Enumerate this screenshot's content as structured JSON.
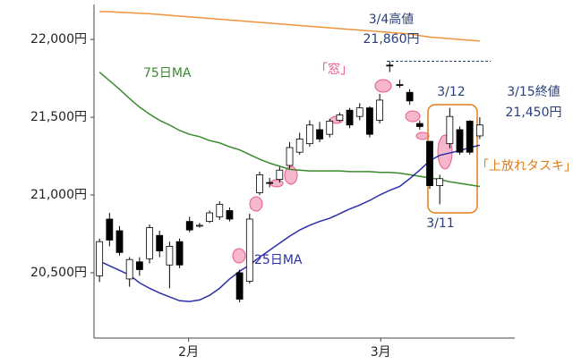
{
  "chart_data": {
    "type": "candlestick",
    "categories": [
      null,
      null,
      null,
      null,
      null,
      null,
      null,
      null,
      null,
      null,
      null,
      null,
      null,
      null,
      null,
      null,
      null,
      null,
      null,
      null,
      null,
      null,
      null,
      null,
      null,
      null,
      null,
      null,
      null,
      null,
      null,
      null,
      null,
      null,
      null,
      null,
      null,
      null,
      null
    ],
    "open": [
      20480,
      20845,
      20770,
      20460,
      20570,
      20590,
      20740,
      20550,
      20700,
      20830,
      20800,
      20830,
      20860,
      20900,
      20500,
      20445,
      21015,
      21080,
      21100,
      21190,
      21275,
      21330,
      21420,
      21390,
      21480,
      21545,
      21505,
      21560,
      21480,
      21835,
      21710,
      21660,
      21460,
      21345,
      21060,
      21330,
      21420,
      21475,
      21380
    ],
    "high": [
      20720,
      20885,
      20800,
      20600,
      20600,
      20810,
      20770,
      20700,
      20720,
      20860,
      20820,
      20900,
      20960,
      20920,
      20520,
      20880,
      21150,
      21110,
      21180,
      21340,
      21400,
      21480,
      21470,
      21490,
      21530,
      21560,
      21590,
      21570,
      21650,
      21860,
      21740,
      21680,
      21480,
      21345,
      21130,
      21560,
      21440,
      21480,
      21500
    ],
    "low": [
      20440,
      20670,
      20610,
      20410,
      20480,
      20560,
      20600,
      20400,
      20530,
      20760,
      20790,
      20820,
      20840,
      20830,
      20310,
      20430,
      21000,
      21050,
      21080,
      21170,
      21260,
      21310,
      21340,
      21370,
      21470,
      21430,
      21480,
      21370,
      21460,
      21790,
      21690,
      21580,
      21420,
      21040,
      20940,
      21300,
      21260,
      21260,
      21360
    ],
    "close": [
      20700,
      20710,
      20630,
      20585,
      20520,
      20790,
      20640,
      20670,
      20550,
      20775,
      20805,
      20885,
      20940,
      20845,
      20330,
      20845,
      21130,
      21075,
      21160,
      21305,
      21360,
      21450,
      21360,
      21475,
      21515,
      21450,
      21560,
      21390,
      21610,
      21830,
      21705,
      21605,
      21440,
      21060,
      21105,
      21505,
      21275,
      21275,
      21450
    ],
    "up_color": "#ffffff",
    "down_color": "#000000",
    "series": [
      {
        "name": "75日MA",
        "color": "#3a8a2e",
        "values": [
          21790,
          21735,
          21680,
          21620,
          21565,
          21520,
          21480,
          21450,
          21415,
          21390,
          21375,
          21350,
          21335,
          21310,
          21290,
          21260,
          21230,
          21205,
          21185,
          21165,
          21160,
          21155,
          21155,
          21155,
          21155,
          21150,
          21150,
          21150,
          21145,
          21145,
          21140,
          21130,
          21120,
          21110,
          21100,
          21085,
          21075,
          21065,
          21055
        ]
      },
      {
        "name": "25日MA",
        "color": "#2a2fa8",
        "values": [
          20575,
          20545,
          20515,
          20485,
          20435,
          20400,
          20370,
          20345,
          20320,
          20315,
          20325,
          20355,
          20400,
          20460,
          20510,
          20550,
          20600,
          20645,
          20690,
          20735,
          20775,
          20805,
          20830,
          20850,
          20880,
          20910,
          20935,
          20965,
          21000,
          21030,
          21055,
          21105,
          21160,
          21220,
          21255,
          21270,
          21285,
          21305,
          21320
        ]
      },
      {
        "color": "#f0933a",
        "values": [
          22180,
          22178,
          22175,
          22172,
          22168,
          22165,
          22160,
          22155,
          22150,
          22145,
          22140,
          22135,
          22130,
          22125,
          22120,
          22115,
          22110,
          22105,
          22100,
          22095,
          22090,
          22085,
          22080,
          22075,
          22070,
          22065,
          22060,
          22055,
          22050,
          22045,
          22040,
          22035,
          22025,
          22015,
          22010,
          22005,
          22000,
          21995,
          21990
        ]
      }
    ],
    "xlim": [
      -0.55,
      41.5
    ],
    "xticks": [
      {
        "value": 8.9,
        "label": "2月"
      },
      {
        "value": 28.1,
        "label": "3月"
      }
    ],
    "ylim": [
      20080,
      22225
    ],
    "yticks": [
      {
        "value": 20500,
        "label": "20,500円"
      },
      {
        "value": 21000,
        "label": "21,000円"
      },
      {
        "value": 21500,
        "label": "21,500円"
      },
      {
        "value": 22000,
        "label": "22,000円"
      }
    ],
    "grid": false,
    "annotations": [
      "「窓」",
      "3/4高値",
      "21,860円",
      "3/12",
      "3/15終値",
      "21,450円",
      "「上放れタスキ」",
      "3/11"
    ]
  }
}
